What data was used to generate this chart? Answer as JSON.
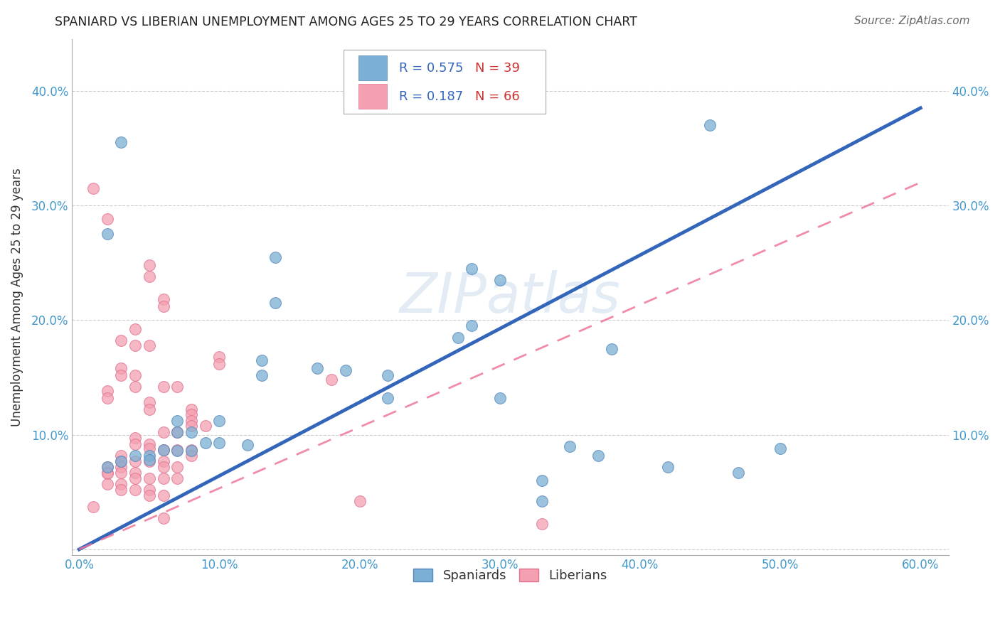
{
  "title": "SPANIARD VS LIBERIAN UNEMPLOYMENT AMONG AGES 25 TO 29 YEARS CORRELATION CHART",
  "source": "Source: ZipAtlas.com",
  "ylabel": "Unemployment Among Ages 25 to 29 years",
  "xlabel": "",
  "xlim": [
    -0.005,
    0.62
  ],
  "ylim": [
    -0.005,
    0.445
  ],
  "xticks": [
    0.0,
    0.1,
    0.2,
    0.3,
    0.4,
    0.5,
    0.6
  ],
  "xticklabels": [
    "0.0%",
    "10.0%",
    "20.0%",
    "30.0%",
    "40.0%",
    "50.0%",
    "60.0%"
  ],
  "yticks": [
    0.0,
    0.1,
    0.2,
    0.3,
    0.4
  ],
  "yticklabels": [
    "",
    "10.0%",
    "20.0%",
    "30.0%",
    "40.0%"
  ],
  "right_yticklabels": [
    "10.0%",
    "20.0%",
    "30.0%",
    "40.0%"
  ],
  "spaniard_color": "#7BAFD4",
  "liberian_color": "#F4A0B0",
  "spaniard_edge_color": "#5588BB",
  "liberian_edge_color": "#E07090",
  "spaniard_line_color": "#3366BB",
  "liberian_line_color": "#EE7799",
  "grid_color": "#CCCCCC",
  "R_spaniard": 0.575,
  "N_spaniard": 39,
  "R_liberian": 0.187,
  "N_liberian": 66,
  "watermark": "ZIPatlas",
  "spaniard_points": [
    [
      0.03,
      0.355
    ],
    [
      0.45,
      0.37
    ],
    [
      0.14,
      0.255
    ],
    [
      0.28,
      0.245
    ],
    [
      0.3,
      0.235
    ],
    [
      0.14,
      0.215
    ],
    [
      0.28,
      0.195
    ],
    [
      0.27,
      0.185
    ],
    [
      0.38,
      0.175
    ],
    [
      0.13,
      0.165
    ],
    [
      0.17,
      0.158
    ],
    [
      0.19,
      0.156
    ],
    [
      0.13,
      0.152
    ],
    [
      0.22,
      0.152
    ],
    [
      0.22,
      0.132
    ],
    [
      0.3,
      0.132
    ],
    [
      0.35,
      0.09
    ],
    [
      0.5,
      0.088
    ],
    [
      0.37,
      0.082
    ],
    [
      0.1,
      0.112
    ],
    [
      0.07,
      0.112
    ],
    [
      0.07,
      0.102
    ],
    [
      0.08,
      0.102
    ],
    [
      0.09,
      0.093
    ],
    [
      0.1,
      0.093
    ],
    [
      0.12,
      0.091
    ],
    [
      0.06,
      0.087
    ],
    [
      0.07,
      0.086
    ],
    [
      0.08,
      0.086
    ],
    [
      0.04,
      0.082
    ],
    [
      0.05,
      0.082
    ],
    [
      0.05,
      0.078
    ],
    [
      0.03,
      0.077
    ],
    [
      0.02,
      0.072
    ],
    [
      0.42,
      0.072
    ],
    [
      0.47,
      0.067
    ],
    [
      0.33,
      0.042
    ],
    [
      0.02,
      0.275
    ],
    [
      0.33,
      0.06
    ]
  ],
  "liberian_points": [
    [
      0.01,
      0.315
    ],
    [
      0.02,
      0.288
    ],
    [
      0.05,
      0.248
    ],
    [
      0.05,
      0.238
    ],
    [
      0.06,
      0.218
    ],
    [
      0.06,
      0.212
    ],
    [
      0.04,
      0.192
    ],
    [
      0.03,
      0.182
    ],
    [
      0.04,
      0.178
    ],
    [
      0.05,
      0.178
    ],
    [
      0.1,
      0.168
    ],
    [
      0.1,
      0.162
    ],
    [
      0.03,
      0.158
    ],
    [
      0.03,
      0.152
    ],
    [
      0.04,
      0.152
    ],
    [
      0.18,
      0.148
    ],
    [
      0.07,
      0.142
    ],
    [
      0.04,
      0.142
    ],
    [
      0.06,
      0.142
    ],
    [
      0.02,
      0.138
    ],
    [
      0.02,
      0.132
    ],
    [
      0.05,
      0.128
    ],
    [
      0.05,
      0.122
    ],
    [
      0.08,
      0.122
    ],
    [
      0.08,
      0.118
    ],
    [
      0.08,
      0.112
    ],
    [
      0.08,
      0.108
    ],
    [
      0.09,
      0.108
    ],
    [
      0.06,
      0.102
    ],
    [
      0.07,
      0.102
    ],
    [
      0.04,
      0.097
    ],
    [
      0.04,
      0.092
    ],
    [
      0.05,
      0.092
    ],
    [
      0.05,
      0.088
    ],
    [
      0.06,
      0.087
    ],
    [
      0.07,
      0.087
    ],
    [
      0.08,
      0.087
    ],
    [
      0.08,
      0.082
    ],
    [
      0.03,
      0.082
    ],
    [
      0.03,
      0.077
    ],
    [
      0.04,
      0.077
    ],
    [
      0.05,
      0.077
    ],
    [
      0.06,
      0.077
    ],
    [
      0.06,
      0.072
    ],
    [
      0.07,
      0.072
    ],
    [
      0.03,
      0.072
    ],
    [
      0.02,
      0.072
    ],
    [
      0.02,
      0.067
    ],
    [
      0.02,
      0.066
    ],
    [
      0.03,
      0.067
    ],
    [
      0.04,
      0.067
    ],
    [
      0.04,
      0.062
    ],
    [
      0.05,
      0.062
    ],
    [
      0.06,
      0.062
    ],
    [
      0.07,
      0.062
    ],
    [
      0.02,
      0.057
    ],
    [
      0.03,
      0.057
    ],
    [
      0.03,
      0.052
    ],
    [
      0.04,
      0.052
    ],
    [
      0.05,
      0.052
    ],
    [
      0.05,
      0.047
    ],
    [
      0.06,
      0.047
    ],
    [
      0.2,
      0.042
    ],
    [
      0.01,
      0.037
    ],
    [
      0.06,
      0.027
    ],
    [
      0.33,
      0.022
    ]
  ],
  "regression_spaniard": [
    0.0,
    0.0,
    0.6,
    0.385
  ],
  "regression_liberian": [
    0.0,
    0.0,
    0.6,
    0.32
  ]
}
